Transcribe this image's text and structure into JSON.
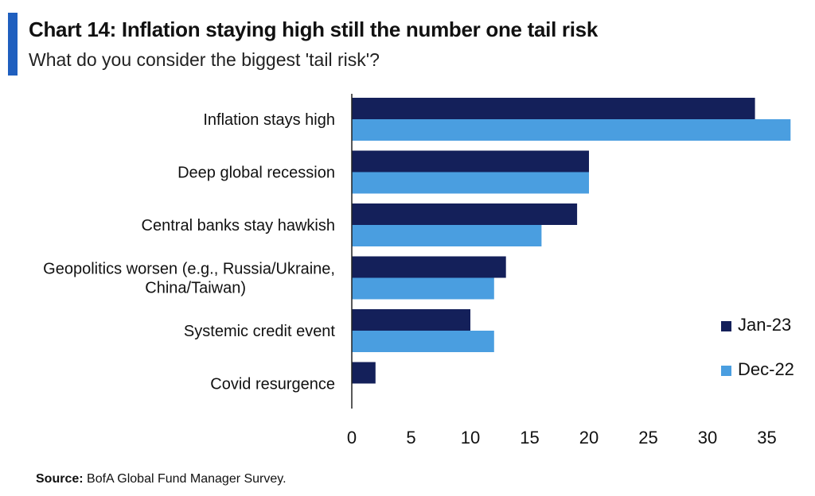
{
  "header": {
    "title": "Chart 14: Inflation staying high still the number one tail risk",
    "subtitle": "What do you consider the biggest 'tail risk'?"
  },
  "footer": {
    "source_label": "Source:",
    "source_text": "BofA Global Fund Manager Survey."
  },
  "colors": {
    "accent": "#1f5fbf",
    "jan23": "#14205a",
    "dec22": "#4a9ee0"
  },
  "chart_data": {
    "type": "bar",
    "orientation": "horizontal",
    "title": "Chart 14: Inflation staying high still the number one tail risk",
    "subtitle": "What do you consider the biggest 'tail risk'?",
    "categories": [
      "Inflation stays high",
      "Deep global recession",
      "Central banks stay hawkish",
      "Geopolitics worsen (e.g., Russia/Ukraine, China/Taiwan)",
      "Systemic credit event",
      "Covid resurgence"
    ],
    "category_label_lines": [
      [
        "Inflation stays high"
      ],
      [
        "Deep global recession"
      ],
      [
        "Central banks stay hawkish"
      ],
      [
        "Geopolitics worsen (e.g., Russia/Ukraine,",
        "China/Taiwan)"
      ],
      [
        "Systemic credit event"
      ],
      [
        "Covid resurgence"
      ]
    ],
    "series": [
      {
        "name": "Jan-23",
        "color": "#14205a",
        "values": [
          34,
          20,
          19,
          13,
          10,
          2
        ]
      },
      {
        "name": "Dec-22",
        "color": "#4a9ee0",
        "values": [
          37,
          20,
          16,
          12,
          12,
          0
        ]
      }
    ],
    "xlim": [
      0,
      37
    ],
    "xticks": [
      0,
      5,
      10,
      15,
      20,
      25,
      30,
      35
    ],
    "xlabel": "",
    "ylabel": "",
    "grid": false,
    "legend_position": "right"
  }
}
